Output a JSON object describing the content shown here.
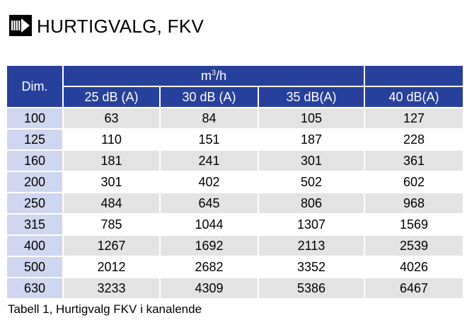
{
  "header": {
    "title": "HURTIGVALG, FKV",
    "logo_icon": "fan-arrow-icon"
  },
  "table": {
    "dim_header": "Dim.",
    "unit_base": "m",
    "unit_exponent": "3",
    "unit_suffix": "/h",
    "columns": [
      "25 dB (A)",
      "30 dB (A)",
      "35 dB(A)",
      "40 dB(A)"
    ],
    "rows": [
      {
        "dim": "100",
        "values": [
          "63",
          "84",
          "105",
          "127"
        ]
      },
      {
        "dim": "125",
        "values": [
          "110",
          "151",
          "187",
          "228"
        ]
      },
      {
        "dim": "160",
        "values": [
          "181",
          "241",
          "301",
          "361"
        ]
      },
      {
        "dim": "200",
        "values": [
          "301",
          "402",
          "502",
          "602"
        ]
      },
      {
        "dim": "250",
        "values": [
          "484",
          "645",
          "806",
          "968"
        ]
      },
      {
        "dim": "315",
        "values": [
          "785",
          "1044",
          "1307",
          "1569"
        ]
      },
      {
        "dim": "400",
        "values": [
          "1267",
          "1692",
          "2113",
          "2539"
        ]
      },
      {
        "dim": "500",
        "values": [
          "2012",
          "2682",
          "3352",
          "4026"
        ]
      },
      {
        "dim": "630",
        "values": [
          "3233",
          "4309",
          "5386",
          "6467"
        ]
      }
    ]
  },
  "caption": "Tabell 1, Hurtigvalg FKV i kanalende",
  "colors": {
    "header_blue": "#27409b",
    "dim_column": "#cfd6f0",
    "row_shade": "#e3e3e3"
  }
}
